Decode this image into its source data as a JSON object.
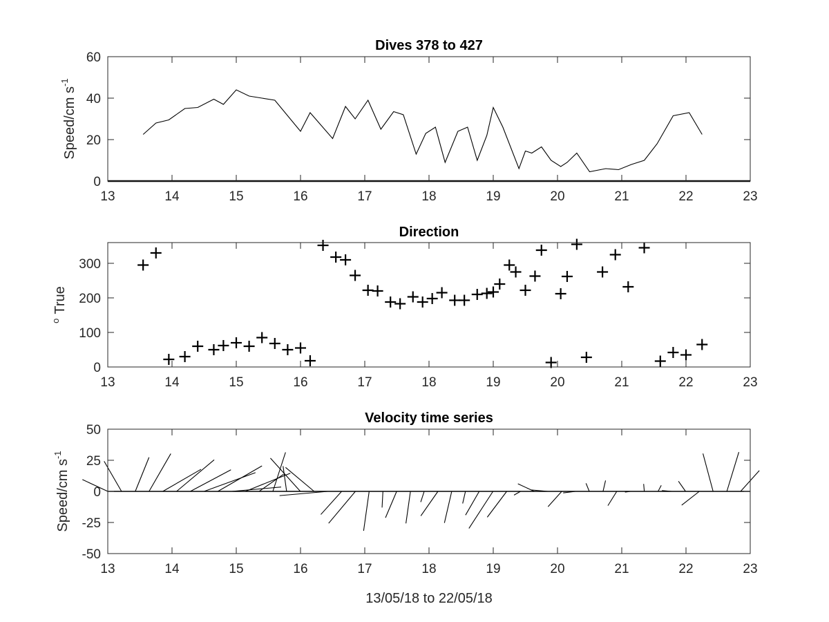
{
  "chart_data": [
    {
      "type": "line",
      "title": "Dives 378 to 427",
      "ylabel": "Speed/cm s",
      "ylabel_superscript": "-1",
      "xlim": [
        13,
        23
      ],
      "ylim": [
        0,
        60
      ],
      "xticks": [
        "13",
        "14",
        "15",
        "16",
        "17",
        "18",
        "19",
        "20",
        "21",
        "22",
        "23"
      ],
      "yticks": [
        "0",
        "20",
        "40",
        "60"
      ],
      "grid": false,
      "x": [
        13.55,
        13.75,
        13.95,
        14.2,
        14.4,
        14.65,
        14.8,
        15.0,
        15.2,
        15.4,
        15.6,
        16.0,
        16.15,
        16.5,
        16.7,
        16.85,
        17.05,
        17.25,
        17.45,
        17.6,
        17.8,
        17.95,
        18.1,
        18.25,
        18.45,
        18.6,
        18.75,
        18.9,
        19.0,
        19.15,
        19.4,
        19.5,
        19.6,
        19.75,
        19.9,
        20.05,
        20.15,
        20.3,
        20.5,
        20.75,
        20.95,
        21.15,
        21.35,
        21.55,
        21.8,
        22.05,
        22.25
      ],
      "y": [
        22.5,
        28,
        29.5,
        35,
        35.5,
        39.5,
        37,
        44,
        41,
        40,
        39,
        24,
        33,
        20.5,
        36,
        30,
        39,
        25,
        33.5,
        32,
        13,
        23,
        26,
        9,
        24,
        26,
        10,
        22,
        35.5,
        26,
        6,
        14.5,
        13.5,
        16.5,
        10,
        7,
        9,
        13.5,
        4.5,
        6,
        5.5,
        8,
        10,
        18,
        31.5,
        33,
        22.5
      ]
    },
    {
      "type": "scatter",
      "title": "Direction",
      "ylabel": "True",
      "ylabel_superscript": "o",
      "xlim": [
        13,
        23
      ],
      "ylim": [
        0,
        360
      ],
      "xticks": [
        "13",
        "14",
        "15",
        "16",
        "17",
        "18",
        "19",
        "20",
        "21",
        "22",
        "23"
      ],
      "yticks": [
        "0",
        "100",
        "200",
        "300"
      ],
      "marker": "+",
      "grid": false,
      "x": [
        13.55,
        13.75,
        13.95,
        14.2,
        14.4,
        14.65,
        14.8,
        15.0,
        15.2,
        15.4,
        15.6,
        15.8,
        16.0,
        16.15,
        16.35,
        16.55,
        16.7,
        16.85,
        17.05,
        17.2,
        17.4,
        17.55,
        17.75,
        17.9,
        18.05,
        18.2,
        18.4,
        18.55,
        18.75,
        18.9,
        19.0,
        19.1,
        19.25,
        19.35,
        19.5,
        19.65,
        19.75,
        19.9,
        20.05,
        20.15,
        20.3,
        20.45,
        20.7,
        20.9,
        21.1,
        21.35,
        21.6,
        21.8,
        22.0,
        22.25
      ],
      "y": [
        295,
        330,
        22,
        30,
        60,
        50,
        62,
        70,
        60,
        85,
        68,
        50,
        55,
        18,
        352,
        318,
        310,
        265,
        222,
        220,
        188,
        183,
        203,
        188,
        198,
        215,
        193,
        193,
        210,
        213,
        217,
        240,
        295,
        275,
        222,
        263,
        338,
        13,
        212,
        262,
        355,
        28,
        275,
        325,
        232,
        345,
        17,
        42,
        35,
        65
      ]
    },
    {
      "type": "quiver",
      "title": "Velocity time series",
      "ylabel": "Speed/cm s",
      "ylabel_superscript": "-1",
      "xlabel": "13/05/18 to 22/05/18",
      "xlim": [
        13,
        23
      ],
      "ylim": [
        -50,
        50
      ],
      "xticks": [
        "13",
        "14",
        "15",
        "16",
        "17",
        "18",
        "19",
        "20",
        "21",
        "22",
        "23"
      ],
      "yticks": [
        "-50",
        "-25",
        "0",
        "25",
        "50"
      ],
      "grid": false,
      "speed": [
        22.5,
        28,
        29.5,
        35,
        35.5,
        39.5,
        37,
        44,
        41,
        40,
        39,
        24,
        33,
        20.5,
        36,
        30,
        39,
        25,
        33.5,
        32,
        13,
        23,
        26,
        9,
        24,
        26,
        10,
        22,
        35.5,
        26,
        6,
        14.5,
        13.5,
        16.5,
        10,
        7,
        9,
        13.5,
        4.5,
        6,
        5.5,
        8,
        10,
        18,
        31.5,
        33,
        22.5
      ],
      "direction": [
        295,
        330,
        22,
        30,
        60,
        50,
        62,
        70,
        60,
        85,
        68,
        55,
        18,
        352,
        318,
        310,
        265,
        222,
        220,
        188,
        183,
        203,
        188,
        198,
        215,
        193,
        193,
        210,
        213,
        217,
        240,
        295,
        275,
        222,
        263,
        338,
        13,
        212,
        262,
        355,
        28,
        275,
        325,
        232,
        345,
        17,
        42
      ]
    }
  ]
}
